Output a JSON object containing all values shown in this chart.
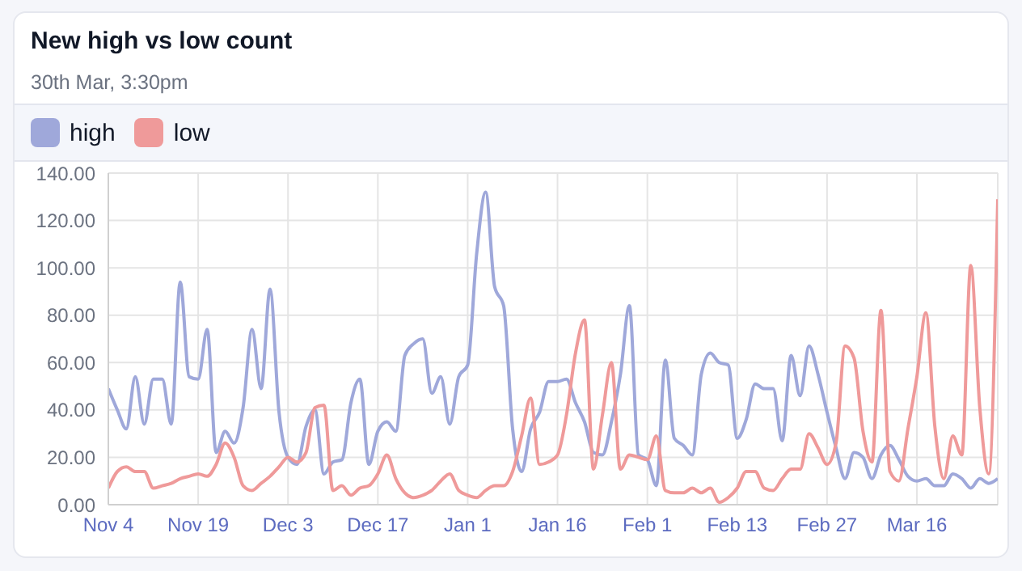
{
  "chart_data": {
    "type": "line",
    "title": "New high vs low count",
    "subtitle": "30th Mar, 3:30pm",
    "categories": [
      "Nov 4",
      null,
      null,
      null,
      null,
      null,
      null,
      null,
      null,
      null,
      "Nov 19",
      null,
      null,
      null,
      null,
      null,
      null,
      null,
      null,
      null,
      "Dec 3",
      null,
      null,
      null,
      null,
      null,
      null,
      null,
      null,
      null,
      "Dec 17",
      null,
      null,
      null,
      null,
      null,
      null,
      null,
      null,
      null,
      "Jan 1",
      null,
      null,
      null,
      null,
      null,
      null,
      null,
      null,
      null,
      "Jan 16",
      null,
      null,
      null,
      null,
      null,
      null,
      null,
      null,
      null,
      "Feb 1",
      null,
      null,
      null,
      null,
      null,
      null,
      null,
      null,
      null,
      "Feb 13",
      null,
      null,
      null,
      null,
      null,
      null,
      null,
      null,
      null,
      "Feb 27",
      null,
      null,
      null,
      null,
      null,
      null,
      null,
      null,
      null,
      "Mar 16",
      null,
      null,
      null,
      null,
      null,
      null,
      null,
      null,
      null
    ],
    "series": [
      {
        "name": "high",
        "color": "#9fa8da",
        "values": [
          49,
          40,
          32,
          54,
          34,
          53,
          53,
          34,
          94,
          54,
          53,
          74,
          22,
          31,
          26,
          41,
          74,
          49,
          91,
          39,
          20,
          17,
          33,
          40,
          13,
          18,
          19,
          43,
          53,
          17,
          31,
          35,
          31,
          63,
          68,
          70,
          47,
          54,
          34,
          54,
          59,
          106,
          132,
          92,
          84,
          32,
          14,
          32,
          39,
          52,
          52,
          53,
          43,
          35,
          22,
          21,
          35,
          55,
          84,
          21,
          19,
          8,
          61,
          28,
          25,
          21,
          55,
          64,
          60,
          59,
          28,
          36,
          51,
          49,
          49,
          27,
          63,
          46,
          67,
          55,
          39,
          24,
          11,
          22,
          20,
          11,
          21,
          25,
          19,
          12,
          10,
          11,
          8,
          8,
          13,
          11,
          7,
          11,
          9,
          11
        ]
      },
      {
        "name": "low",
        "color": "#ef9a9a",
        "values": [
          7,
          14,
          16,
          14,
          14,
          7,
          8,
          9,
          11,
          12,
          13,
          12,
          17,
          26,
          20,
          8,
          6,
          9,
          12,
          16,
          20,
          18,
          22,
          41,
          42,
          6,
          8,
          4,
          7,
          8,
          13,
          21,
          11,
          5,
          3,
          4,
          6,
          10,
          13,
          6,
          4,
          3,
          6,
          8,
          8,
          14,
          29,
          45,
          17,
          18,
          21,
          38,
          64,
          78,
          15,
          38,
          60,
          15,
          21,
          20,
          19,
          29,
          6,
          5,
          5,
          7,
          5,
          7,
          1,
          3,
          7,
          14,
          14,
          7,
          6,
          11,
          15,
          15,
          30,
          24,
          17,
          26,
          67,
          62,
          31,
          18,
          82,
          14,
          10,
          32,
          54,
          81,
          33,
          11,
          29,
          21,
          101,
          41,
          13,
          129
        ]
      }
    ],
    "ylim": [
      0,
      140
    ],
    "yticks": [
      {
        "value": 0,
        "label": "0.00"
      },
      {
        "value": 20,
        "label": "20.00"
      },
      {
        "value": 40,
        "label": "40.00"
      },
      {
        "value": 60,
        "label": "60.00"
      },
      {
        "value": 80,
        "label": "80.00"
      },
      {
        "value": 100,
        "label": "100.00"
      },
      {
        "value": 120,
        "label": "120.00"
      },
      {
        "value": 140,
        "label": "140.00"
      }
    ],
    "grid": true,
    "legend": "top left",
    "marker": "none",
    "line_style": "solid"
  }
}
